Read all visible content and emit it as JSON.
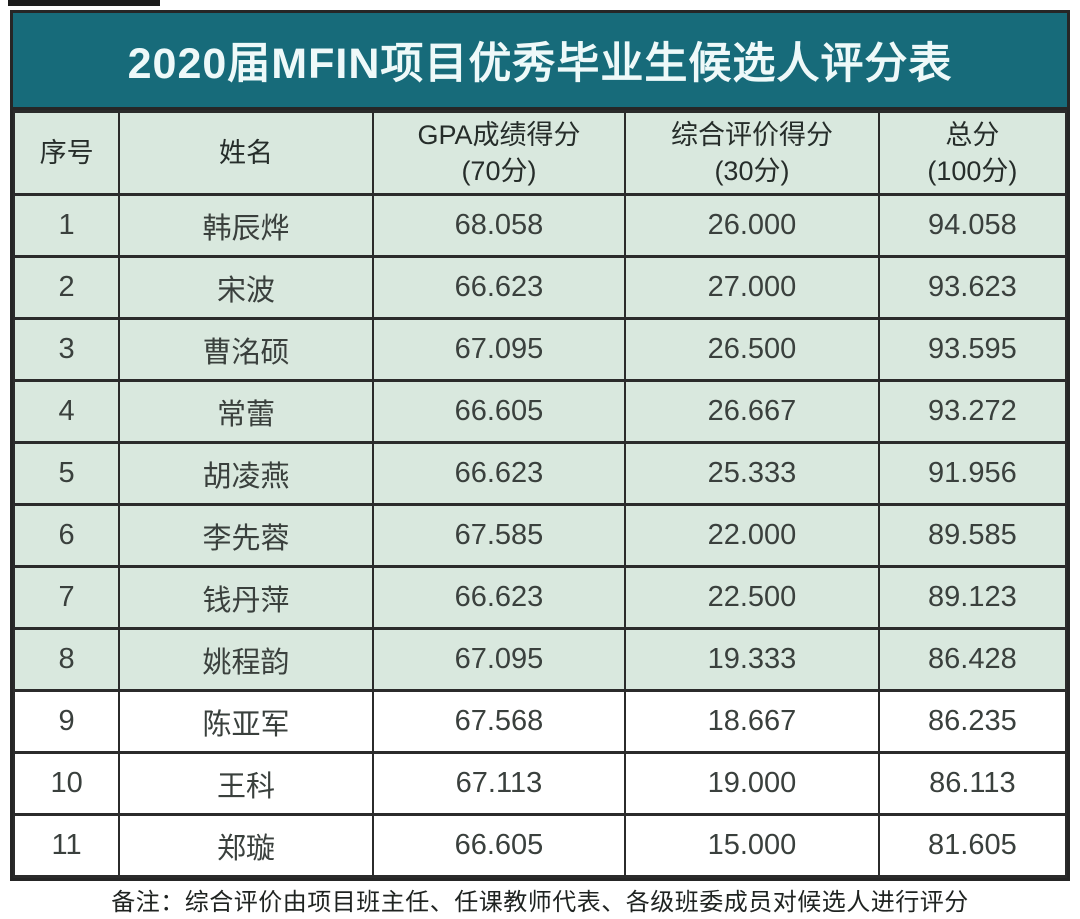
{
  "title": "2020届MFIN项目优秀毕业生候选人评分表",
  "columns": [
    {
      "label": "序号"
    },
    {
      "label": "姓名"
    },
    {
      "label": "GPA成绩得分",
      "sublabel": "(70分)"
    },
    {
      "label": "综合评价得分",
      "sublabel": "(30分)"
    },
    {
      "label": "总分",
      "sublabel": "(100分)"
    }
  ],
  "rows": [
    {
      "rank": "1",
      "name": "韩辰烨",
      "gpa_score": "68.058",
      "eval_score": "26.000",
      "total_score": "94.058",
      "highlighted": true
    },
    {
      "rank": "2",
      "name": "宋波",
      "gpa_score": "66.623",
      "eval_score": "27.000",
      "total_score": "93.623",
      "highlighted": true
    },
    {
      "rank": "3",
      "name": "曹洺硕",
      "gpa_score": "67.095",
      "eval_score": "26.500",
      "total_score": "93.595",
      "highlighted": true
    },
    {
      "rank": "4",
      "name": "常蕾",
      "gpa_score": "66.605",
      "eval_score": "26.667",
      "total_score": "93.272",
      "highlighted": true
    },
    {
      "rank": "5",
      "name": "胡凌燕",
      "gpa_score": "66.623",
      "eval_score": "25.333",
      "total_score": "91.956",
      "highlighted": true
    },
    {
      "rank": "6",
      "name": "李先蓉",
      "gpa_score": "67.585",
      "eval_score": "22.000",
      "total_score": "89.585",
      "highlighted": true
    },
    {
      "rank": "7",
      "name": "钱丹萍",
      "gpa_score": "66.623",
      "eval_score": "22.500",
      "total_score": "89.123",
      "highlighted": true
    },
    {
      "rank": "8",
      "name": "姚程韵",
      "gpa_score": "67.095",
      "eval_score": "19.333",
      "total_score": "86.428",
      "highlighted": true
    },
    {
      "rank": "9",
      "name": "陈亚军",
      "gpa_score": "67.568",
      "eval_score": "18.667",
      "total_score": "86.235",
      "highlighted": false
    },
    {
      "rank": "10",
      "name": "王科",
      "gpa_score": "67.113",
      "eval_score": "19.000",
      "total_score": "86.113",
      "highlighted": false
    },
    {
      "rank": "11",
      "name": "郑璇",
      "gpa_score": "66.605",
      "eval_score": "15.000",
      "total_score": "81.605",
      "highlighted": false
    }
  ],
  "note": "备注：综合评价由项目班主任、任课教师代表、各级班委成员对候选人进行评分",
  "colors": {
    "title_bar_bg": "#176b7a",
    "title_text": "#eef9f9",
    "header_bg": "#d9e8de",
    "highlight_row_bg": "#d9e8de",
    "plain_row_bg": "#ffffff",
    "border": "#2b2b2b",
    "body_text": "#3a403d"
  }
}
